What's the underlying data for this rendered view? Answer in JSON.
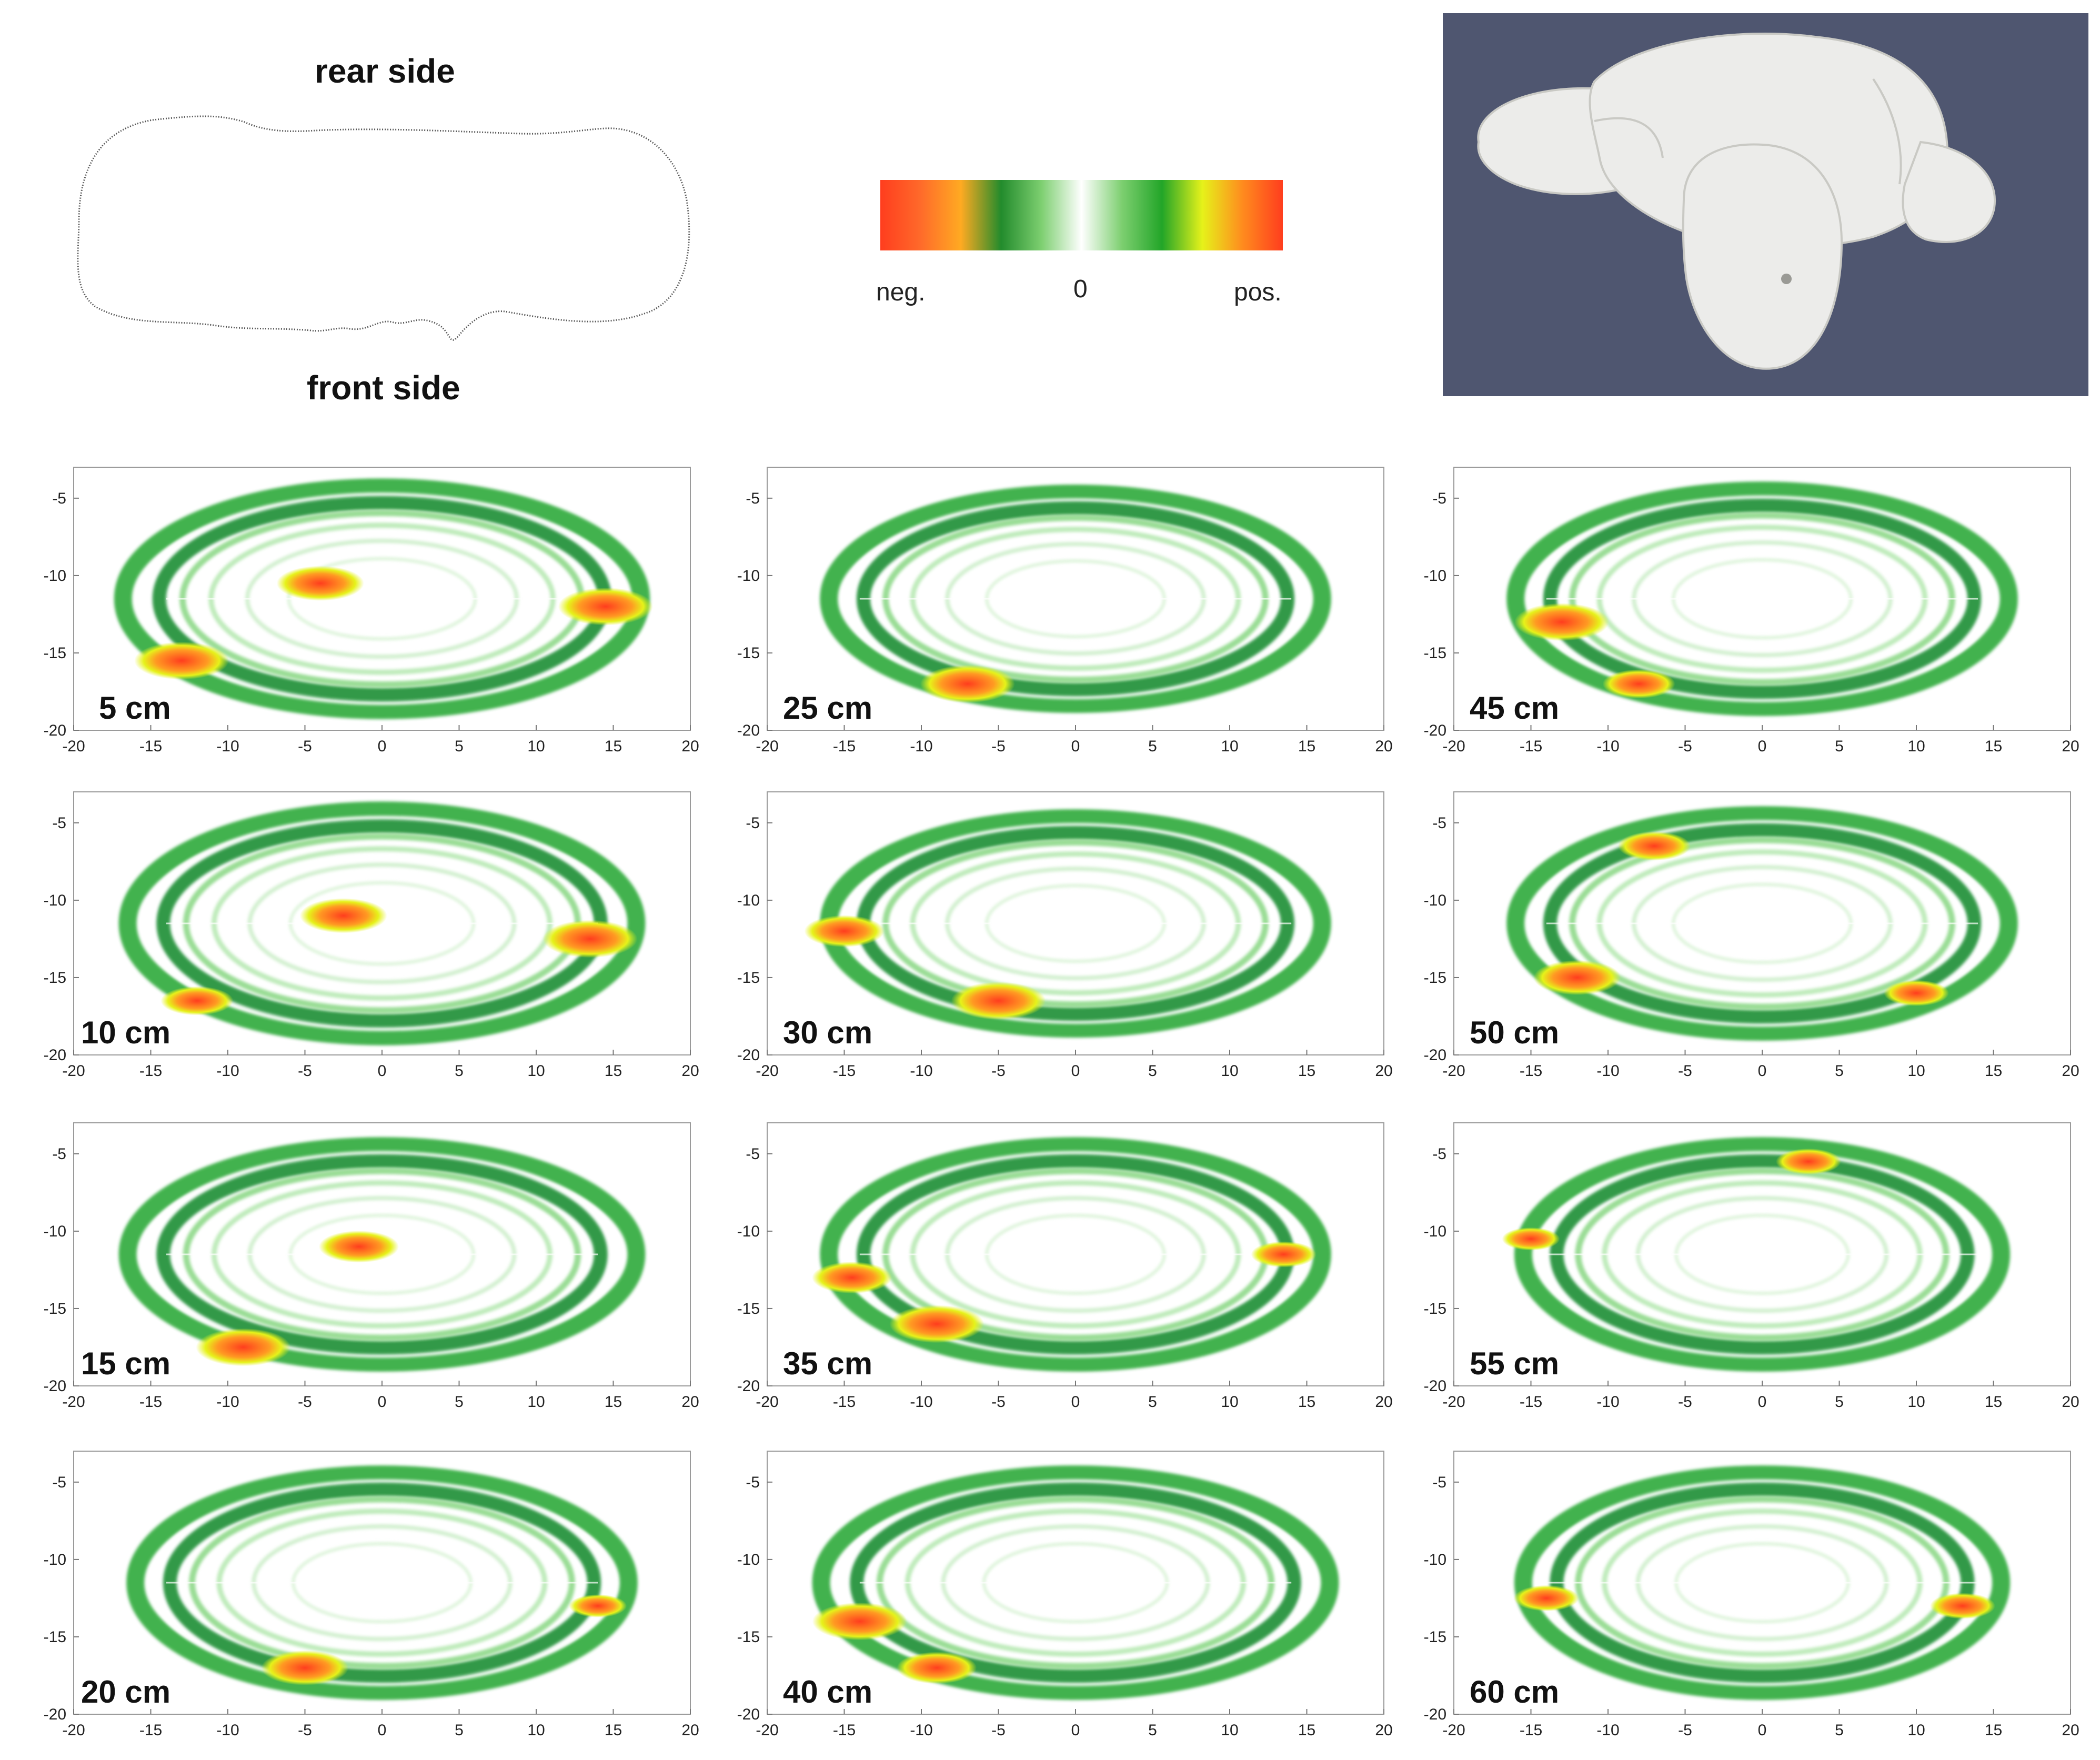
{
  "header": {
    "rear_label": "rear side",
    "front_label": "front side"
  },
  "colorbar": {
    "neg_label": "neg.",
    "zero_label": "0",
    "pos_label": "pos.",
    "stops": [
      "#ff3d1e",
      "#ff6a2a",
      "#ffaa22",
      "#228b2c",
      "#7dcf70",
      "#ffffff",
      "#7dcf70",
      "#22a528",
      "#e6f21a",
      "#ff8b1e",
      "#ff3d1e"
    ]
  },
  "render_panel": {
    "background": "#4f5670",
    "object_color": "#ececea"
  },
  "chart_data": {
    "type": "heatmap",
    "x_ticks": [
      -20,
      -15,
      -10,
      -5,
      0,
      5,
      10,
      15,
      20
    ],
    "y_ticks": [
      -5,
      -10,
      -15,
      -20
    ],
    "xlim": [
      -20,
      20
    ],
    "ylim": [
      -20,
      -3
    ],
    "panels": [
      {
        "label": "5 cm",
        "rx": 16.8,
        "ry": 7.2,
        "hot": [
          {
            "x": -13,
            "y": -15.5,
            "s": 1.0
          },
          {
            "x": 14.5,
            "y": -12,
            "s": 1.0
          },
          {
            "x": -4,
            "y": -10.5,
            "s": 0.9
          }
        ]
      },
      {
        "label": "10 cm",
        "rx": 16.5,
        "ry": 7.3,
        "hot": [
          {
            "x": -12,
            "y": -16.5,
            "s": 0.7
          },
          {
            "x": 13.5,
            "y": -12.5,
            "s": 1.0
          },
          {
            "x": -2.5,
            "y": -11,
            "s": 0.9
          }
        ]
      },
      {
        "label": "15 cm",
        "rx": 16.5,
        "ry": 7.0,
        "hot": [
          {
            "x": -9,
            "y": -17.5,
            "s": 1.0
          },
          {
            "x": -1.5,
            "y": -11,
            "s": 0.8
          }
        ]
      },
      {
        "label": "20 cm",
        "rx": 16.0,
        "ry": 7.0,
        "hot": [
          {
            "x": -5,
            "y": -17,
            "s": 0.9
          },
          {
            "x": 14,
            "y": -13,
            "s": 0.5
          }
        ]
      },
      {
        "label": "25 cm",
        "rx": 16.0,
        "ry": 6.8,
        "hot": [
          {
            "x": -7,
            "y": -17,
            "s": 1.0
          }
        ]
      },
      {
        "label": "30 cm",
        "rx": 16.0,
        "ry": 6.8,
        "hot": [
          {
            "x": -5,
            "y": -16.5,
            "s": 1.0
          },
          {
            "x": -15,
            "y": -12,
            "s": 0.8
          }
        ]
      },
      {
        "label": "35 cm",
        "rx": 16.0,
        "ry": 7.0,
        "hot": [
          {
            "x": -9,
            "y": -16,
            "s": 1.0
          },
          {
            "x": -14.5,
            "y": -13,
            "s": 0.8
          },
          {
            "x": 13.5,
            "y": -11.5,
            "s": 0.6
          }
        ]
      },
      {
        "label": "40 cm",
        "rx": 16.5,
        "ry": 7.0,
        "hot": [
          {
            "x": -14,
            "y": -14,
            "s": 1.0
          },
          {
            "x": -9,
            "y": -17,
            "s": 0.8
          }
        ]
      },
      {
        "label": "45 cm",
        "rx": 16.0,
        "ry": 7.0,
        "hot": [
          {
            "x": -13,
            "y": -13,
            "s": 1.0
          },
          {
            "x": -8,
            "y": -17,
            "s": 0.7
          }
        ]
      },
      {
        "label": "50 cm",
        "rx": 16.0,
        "ry": 7.0,
        "hot": [
          {
            "x": -12,
            "y": -15,
            "s": 0.9
          },
          {
            "x": 10,
            "y": -16,
            "s": 0.6
          },
          {
            "x": -7,
            "y": -6.5,
            "s": 0.7
          }
        ]
      },
      {
        "label": "55 cm",
        "rx": 15.5,
        "ry": 7.0,
        "hot": [
          {
            "x": 3,
            "y": -5.5,
            "s": 0.6
          },
          {
            "x": -15,
            "y": -10.5,
            "s": 0.5
          }
        ]
      },
      {
        "label": "60 cm",
        "rx": 15.5,
        "ry": 7.0,
        "hot": [
          {
            "x": -14,
            "y": -12.5,
            "s": 0.6
          },
          {
            "x": 13,
            "y": -13,
            "s": 0.6
          }
        ]
      }
    ]
  }
}
